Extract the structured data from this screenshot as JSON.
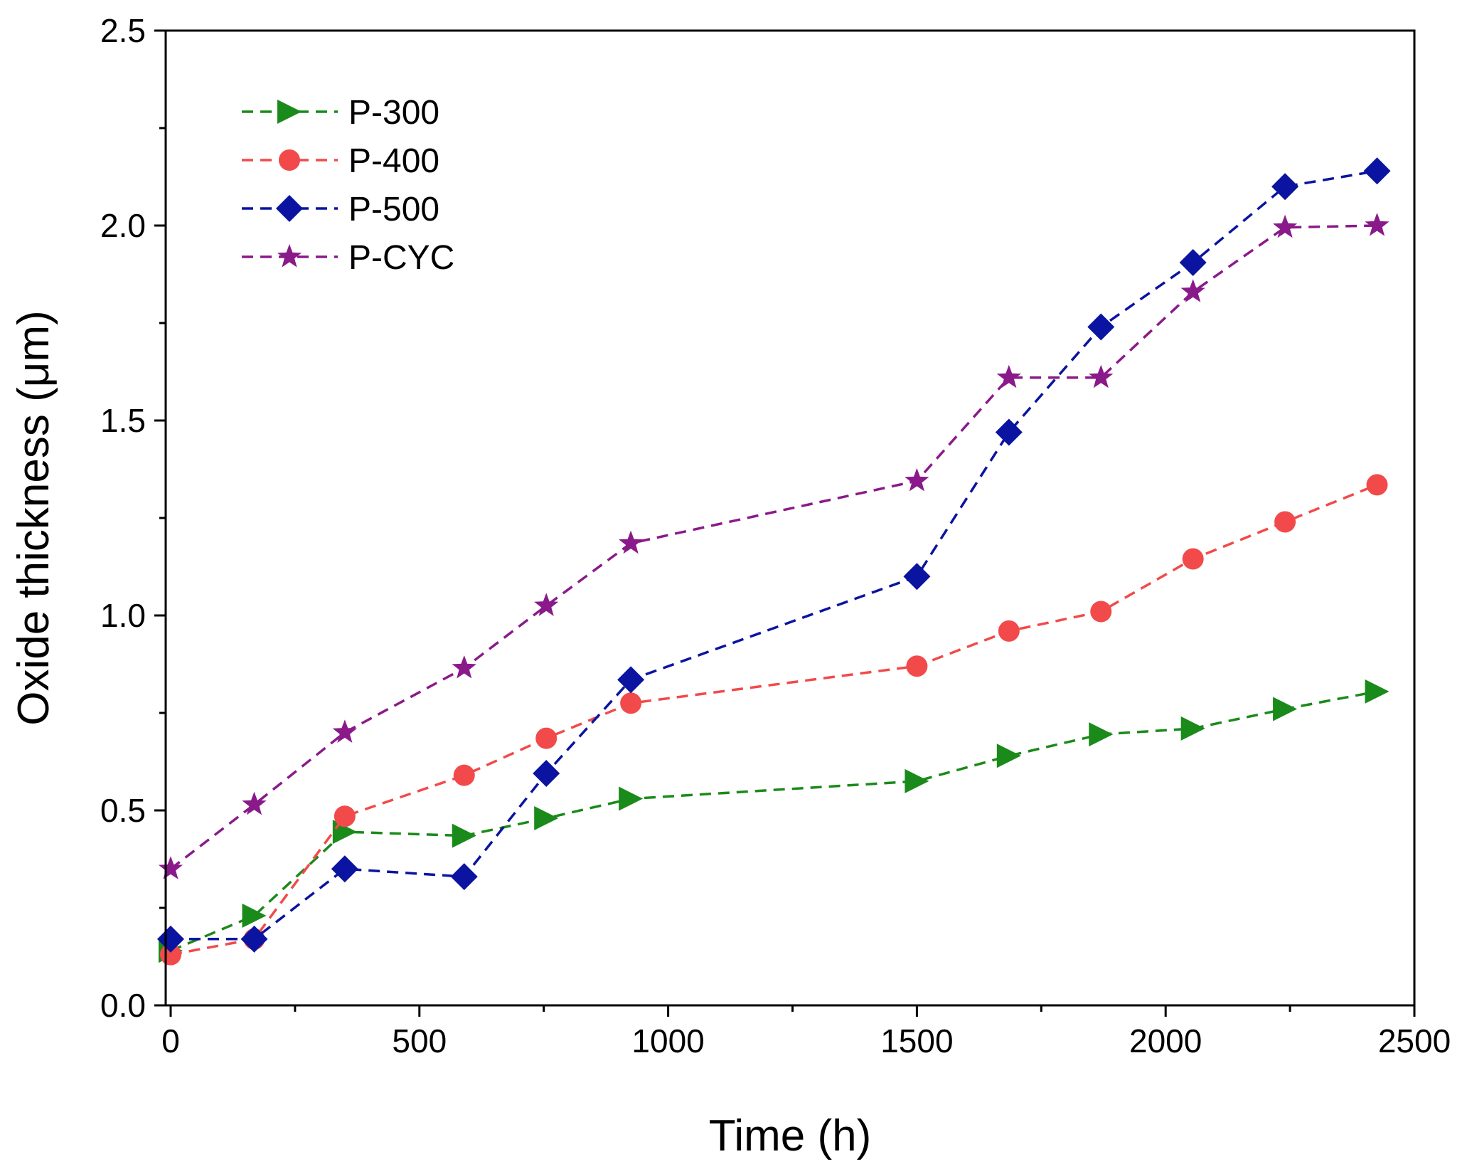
{
  "chart_data": {
    "type": "line",
    "title": "",
    "xlabel": "Time (h)",
    "ylabel": "Oxide thickness (μm)",
    "xlim": [
      -10,
      2500
    ],
    "ylim": [
      0,
      2.5
    ],
    "xticks": [
      0,
      500,
      1000,
      1500,
      2000,
      2500
    ],
    "xtick_labels": [
      "0",
      "500",
      "1000",
      "1500",
      "2000",
      "2500"
    ],
    "yticks": [
      0,
      0.5,
      1.0,
      1.5,
      2.0,
      2.5
    ],
    "ytick_labels": [
      "0.0",
      "0.5",
      "1.0",
      "1.5",
      "2.0",
      "2.5"
    ],
    "grid": false,
    "legend_position": "top-left",
    "series": [
      {
        "name": "P-300",
        "color": "#1a8a1a",
        "marker": "triangle-right",
        "x": [
          0,
          168,
          350,
          590,
          755,
          925,
          1500,
          1685,
          1870,
          2055,
          2240,
          2425
        ],
        "y": [
          0.14,
          0.23,
          0.445,
          0.435,
          0.48,
          0.53,
          0.575,
          0.64,
          0.695,
          0.71,
          0.76,
          0.805
        ]
      },
      {
        "name": "P-400",
        "color": "#f24a4a",
        "marker": "circle",
        "x": [
          0,
          168,
          350,
          590,
          755,
          925,
          1500,
          1685,
          1870,
          2055,
          2240,
          2425
        ],
        "y": [
          0.13,
          0.17,
          0.485,
          0.59,
          0.685,
          0.775,
          0.87,
          0.96,
          1.01,
          1.145,
          1.24,
          1.335
        ]
      },
      {
        "name": "P-500",
        "color": "#0a14a0",
        "marker": "diamond",
        "x": [
          0,
          168,
          350,
          590,
          755,
          925,
          1500,
          1685,
          1870,
          2055,
          2240,
          2425
        ],
        "y": [
          0.17,
          0.17,
          0.35,
          0.33,
          0.595,
          0.835,
          1.1,
          1.47,
          1.74,
          1.905,
          2.1,
          2.14
        ]
      },
      {
        "name": "P-CYC",
        "color": "#8a1a8a",
        "marker": "star",
        "x": [
          0,
          168,
          350,
          590,
          755,
          925,
          1500,
          1685,
          1870,
          2055,
          2240,
          2425
        ],
        "y": [
          0.35,
          0.515,
          0.7,
          0.865,
          1.025,
          1.185,
          1.345,
          1.61,
          1.61,
          1.83,
          1.995,
          2.0
        ]
      }
    ]
  }
}
